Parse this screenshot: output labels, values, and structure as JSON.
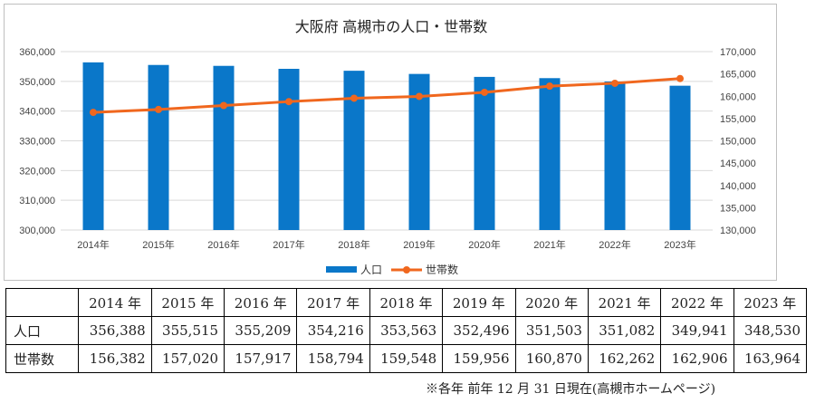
{
  "chart_data": {
    "type": "bar",
    "title": "大阪府 高槻市の人口・世帯数",
    "categories": [
      "2014年",
      "2015年",
      "2016年",
      "2017年",
      "2018年",
      "2019年",
      "2020年",
      "2021年",
      "2022年",
      "2023年"
    ],
    "series": [
      {
        "name": "人口",
        "kind": "bar",
        "axis": "left",
        "values": [
          356388,
          355515,
          355209,
          354216,
          353563,
          352496,
          351503,
          351082,
          349941,
          348530
        ]
      },
      {
        "name": "世帯数",
        "kind": "line",
        "axis": "right",
        "values": [
          156382,
          157020,
          157917,
          158794,
          159548,
          159956,
          160870,
          162262,
          162906,
          163964
        ]
      }
    ],
    "y_left": {
      "lim": [
        300000,
        360000
      ],
      "ticks": [
        "300,000",
        "310,000",
        "320,000",
        "330,000",
        "340,000",
        "350,000",
        "360,000"
      ]
    },
    "y_right": {
      "lim": [
        130000,
        170000
      ],
      "ticks": [
        "130,000",
        "135,000",
        "140,000",
        "145,000",
        "150,000",
        "155,000",
        "160,000",
        "165,000",
        "170,000"
      ]
    },
    "legend_position": "bottom",
    "grid": true,
    "colors": {
      "bar": "#0a77c9",
      "line": "#f0671e",
      "grid": "#d9d9d9"
    }
  },
  "table": {
    "headers": [
      "",
      "2014 年",
      "2015 年",
      "2016 年",
      "2017 年",
      "2018 年",
      "2019 年",
      "2020 年",
      "2021 年",
      "2022 年",
      "2023 年"
    ],
    "rows": [
      {
        "label": "人口",
        "values": [
          "356,388",
          "355,515",
          "355,209",
          "354,216",
          "353,563",
          "352,496",
          "351,503",
          "351,082",
          "349,941",
          "348,530"
        ]
      },
      {
        "label": "世帯数",
        "values": [
          "156,382",
          "157,020",
          "157,917",
          "158,794",
          "159,548",
          "159,956",
          "160,870",
          "162,262",
          "162,906",
          "163,964"
        ]
      }
    ]
  },
  "footnote": "※各年 前年 12 月 31 日現在(高槻市ホームページ)"
}
